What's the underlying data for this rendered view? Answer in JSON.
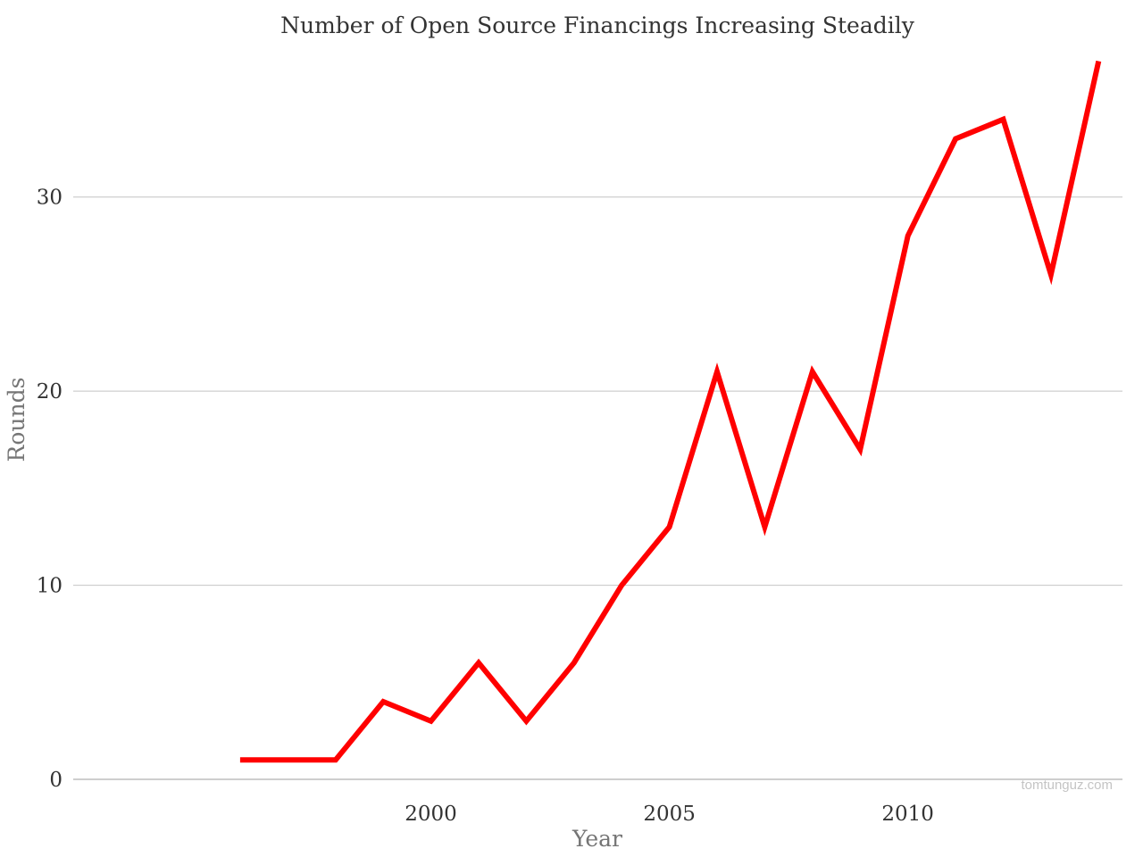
{
  "chart_data": {
    "type": "line",
    "title": "Number of Open Source Financings Increasing Steadily",
    "xlabel": "Year",
    "ylabel": "Rounds",
    "x": [
      1996,
      1997,
      1998,
      1999,
      2000,
      2001,
      2002,
      2003,
      2004,
      2005,
      2006,
      2007,
      2008,
      2009,
      2010,
      2011,
      2012,
      2013,
      2014
    ],
    "series": [
      {
        "values": [
          1,
          1,
          1,
          4,
          3,
          6,
          3,
          6,
          10,
          13,
          21,
          13,
          21,
          17,
          28,
          33,
          34,
          26,
          37
        ],
        "color": "#ff0000"
      }
    ],
    "xlim": [
      1992.5,
      2014.5
    ],
    "ylim": [
      0,
      39
    ],
    "xticks": [
      2000,
      2005,
      2010
    ],
    "xtick_labels": [
      "2000",
      "2005",
      "2010"
    ],
    "yticks": [
      0,
      10,
      20,
      30
    ],
    "ytick_labels": [
      "0",
      "10",
      "20",
      "30"
    ],
    "grid": true,
    "legend": "none"
  },
  "watermark": "tomtunguz.com"
}
